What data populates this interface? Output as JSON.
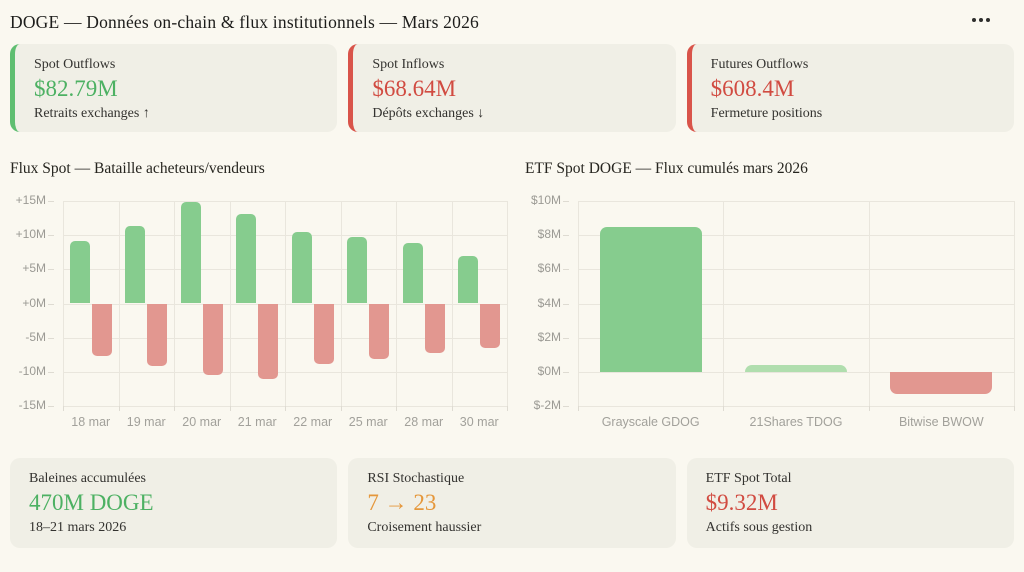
{
  "header": {
    "title": "DOGE — Données on-chain & flux institutionnels — Mars 2026",
    "menu_icon": "more-options-ellipsis"
  },
  "stats_top": [
    {
      "label": "Spot Outflows",
      "value": "$82.79M",
      "sub": "Retraits exchanges ↑",
      "accent": "#5fbe71",
      "value_color": "#4db163"
    },
    {
      "label": "Spot Inflows",
      "value": "$68.64M",
      "sub": "Dépôts exchanges ↓",
      "accent": "#d9544a",
      "value_color": "#d14b41"
    },
    {
      "label": "Futures Outflows",
      "value": "$608.4M",
      "sub": "Fermeture positions",
      "accent": "#d9544a",
      "value_color": "#d14b41"
    }
  ],
  "chart_data": [
    {
      "type": "bar",
      "title": "Flux Spot — Bataille acheteurs/vendeurs",
      "categories": [
        "18 mar",
        "19 mar",
        "20 mar",
        "21 mar",
        "22 mar",
        "25 mar",
        "28 mar",
        "30 mar"
      ],
      "series": [
        {
          "name": "acheteurs",
          "color": "#86cc8e",
          "values": [
            9.2,
            11.3,
            14.8,
            13.1,
            10.4,
            9.7,
            8.9,
            6.9
          ]
        },
        {
          "name": "vendeurs",
          "color": "#e29790",
          "values": [
            -7.7,
            -9.2,
            -10.4,
            -11.1,
            -8.9,
            -8.1,
            -7.3,
            -6.5
          ]
        }
      ],
      "ylim": [
        -15,
        15
      ],
      "yticks": [
        {
          "v": 15,
          "label": "+15M"
        },
        {
          "v": 10,
          "label": "+10M"
        },
        {
          "v": 5,
          "label": "+5M"
        },
        {
          "v": 0,
          "label": "+0M"
        },
        {
          "v": -5,
          "label": "-5M"
        },
        {
          "v": -10,
          "label": "-10M"
        },
        {
          "v": -15,
          "label": "-15M"
        }
      ],
      "grid": true,
      "legend": "none"
    },
    {
      "type": "bar",
      "title": "ETF Spot DOGE — Flux cumulés mars 2026",
      "categories": [
        "Grayscale GDOG",
        "21Shares TDOG",
        "Bitwise BWOW"
      ],
      "values": [
        8.5,
        0.4,
        -1.3
      ],
      "bar_colors": [
        "#86cc8e",
        "#b0deae",
        "#e29790"
      ],
      "ylim": [
        -2,
        10
      ],
      "yticks": [
        {
          "v": 10,
          "label": "$10M"
        },
        {
          "v": 8,
          "label": "$8M"
        },
        {
          "v": 6,
          "label": "$6M"
        },
        {
          "v": 4,
          "label": "$4M"
        },
        {
          "v": 2,
          "label": "$2M"
        },
        {
          "v": 0,
          "label": "$0M"
        },
        {
          "v": -2,
          "label": "$-2M"
        }
      ],
      "grid": true,
      "legend": "none"
    }
  ],
  "stats_bottom": [
    {
      "label": "Baleines accumulées",
      "value": "470M DOGE",
      "sub": "18–21 mars 2026",
      "value_color": "#4db163"
    },
    {
      "label": "RSI Stochastique",
      "value": "7 → 23",
      "sub": "Croisement haussier",
      "value_color": "#e5973b"
    },
    {
      "label": "ETF Spot Total",
      "value": "$9.32M",
      "sub": "Actifs sous gestion",
      "value_color": "#d14b41"
    }
  ]
}
